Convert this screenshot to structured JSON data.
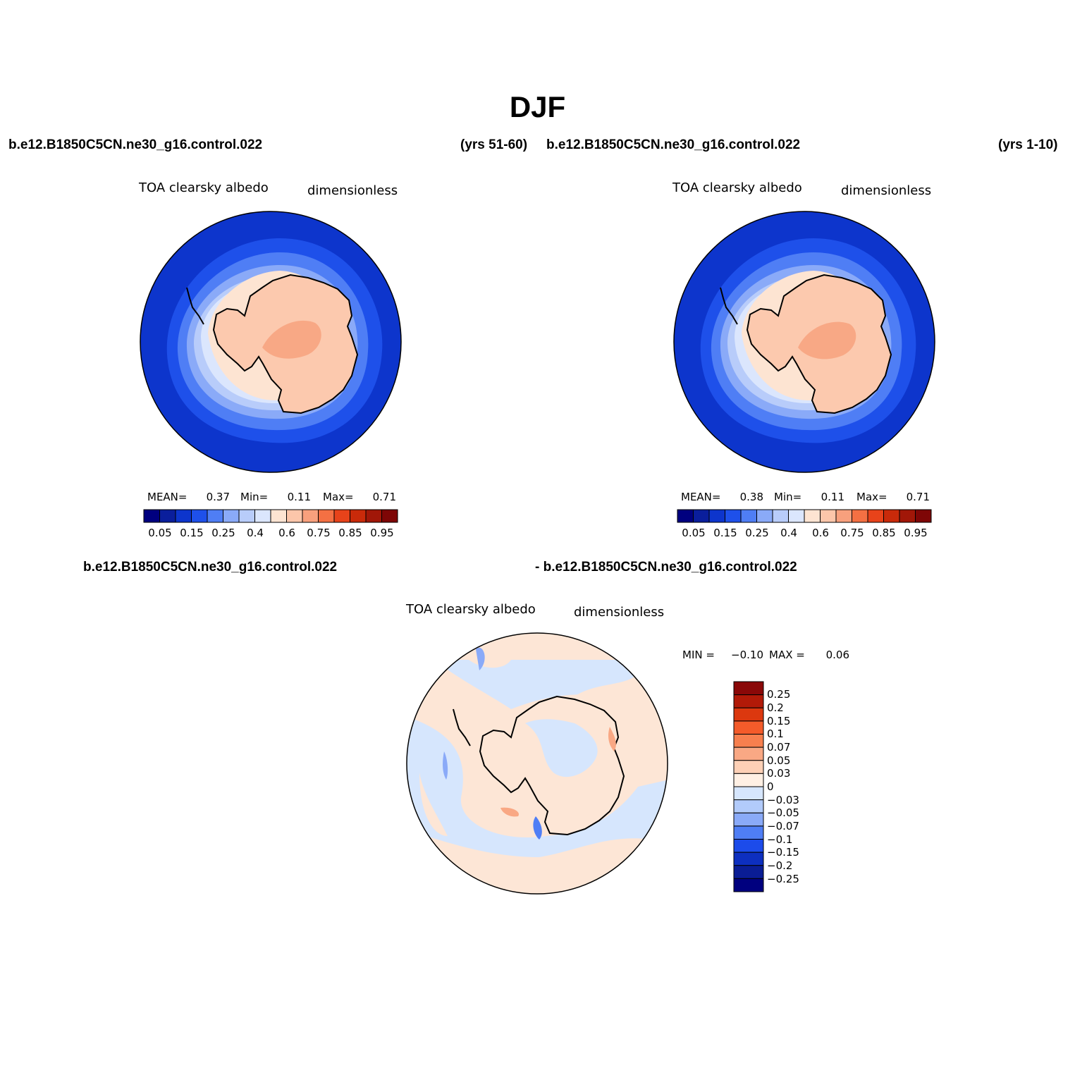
{
  "title": "DJF",
  "panels": [
    {
      "case": "b.e12.B1850C5CN.ne30_g16.control.022",
      "years": "(yrs 51-60)",
      "variable": "TOA clearsky albedo",
      "units": "dimensionless",
      "stats": {
        "mean_label": "MEAN=",
        "mean": "0.37",
        "min_label": "Min=",
        "min": "0.11",
        "max_label": "Max=",
        "max": "0.71"
      }
    },
    {
      "case": "b.e12.B1850C5CN.ne30_g16.control.022",
      "years": "(yrs 1-10)",
      "variable": "TOA clearsky albedo",
      "units": "dimensionless",
      "stats": {
        "mean_label": "MEAN=",
        "mean": "0.38",
        "min_label": "Min=",
        "min": "0.11",
        "max_label": "Max=",
        "max": "0.71"
      }
    },
    {
      "case_a": "b.e12.B1850C5CN.ne30_g16.control.022",
      "case_b": "- b.e12.B1850C5CN.ne30_g16.control.022",
      "variable": "TOA clearsky albedo",
      "units": "dimensionless",
      "stats": {
        "min_label": "MIN =",
        "min": "−0.10",
        "max_label": "MAX =",
        "max": "0.06"
      }
    }
  ],
  "colorbar_main": {
    "colors": [
      "#00007f",
      "#0a1e9c",
      "#0d35cc",
      "#1e50ea",
      "#4f7ef5",
      "#8aaaf8",
      "#b8ccfa",
      "#dbe6fd",
      "#fde4d2",
      "#fcc6aa",
      "#f8a07d",
      "#f47043",
      "#e8431a",
      "#c92a0a",
      "#a11708",
      "#7e0606"
    ],
    "tick_labels": [
      "0.05",
      "0.15",
      "0.25",
      "0.4",
      "0.6",
      "0.75",
      "0.85",
      "0.95"
    ]
  },
  "colorbar_diff": {
    "levels_top_to_bottom": [
      "0.25",
      "0.2",
      "0.15",
      "0.1",
      "0.07",
      "0.05",
      "0.03",
      "0",
      "−0.03",
      "−0.05",
      "−0.07",
      "−0.1",
      "−0.15",
      "−0.2",
      "−0.25"
    ],
    "colors_top_to_bottom": [
      "#8a0808",
      "#b21a08",
      "#dc380f",
      "#f45b2a",
      "#f77f4e",
      "#f9a884",
      "#fdd0b6",
      "#fff0e4",
      "#d6e6fd",
      "#b2cbfb",
      "#8aaaf8",
      "#4f7ef5",
      "#1c4bea",
      "#0d2fc0",
      "#0a1d95",
      "#00007f"
    ]
  },
  "map_fill_colors": {
    "ocean_outer": "#0d35cc",
    "ice_plateau": "#fcc9ae",
    "ice_interior": "#f8a885",
    "diff_positive": "#fde6d6",
    "diff_negative": "#d6e6fd"
  }
}
